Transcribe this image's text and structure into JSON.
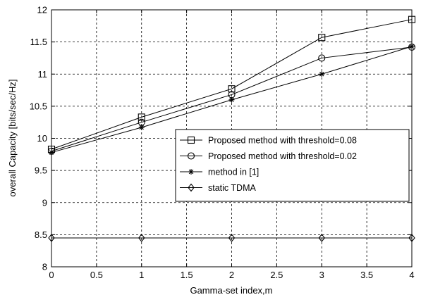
{
  "chart_data": {
    "type": "line",
    "xlabel": "Gamma-set index,m",
    "ylabel": "overall Capacity [bits/sec/Hz]",
    "x": [
      0,
      1,
      2,
      3,
      4
    ],
    "xlim": [
      0,
      4
    ],
    "ylim": [
      8,
      12
    ],
    "xticks": [
      "0",
      "0.5",
      "1",
      "1.5",
      "2",
      "2.5",
      "3",
      "3.5",
      "4"
    ],
    "xtick_values": [
      0,
      0.5,
      1,
      1.5,
      2,
      2.5,
      3,
      3.5,
      4
    ],
    "yticks": [
      "8",
      "8.5",
      "9",
      "9.5",
      "10",
      "10.5",
      "11",
      "11.5",
      "12"
    ],
    "ytick_values": [
      8,
      8.5,
      9,
      9.5,
      10,
      10.5,
      11,
      11.5,
      12
    ],
    "grid": true,
    "legend_position": "center-right",
    "series": [
      {
        "name": "Proposed method with threshold=0.08",
        "marker": "square",
        "values": [
          9.83,
          10.33,
          10.77,
          11.57,
          11.85
        ]
      },
      {
        "name": "Proposed method with threshold=0.02",
        "marker": "circle",
        "values": [
          9.8,
          10.25,
          10.68,
          11.25,
          11.42
        ]
      },
      {
        "name": "method in [1]",
        "marker": "star",
        "values": [
          9.78,
          10.17,
          10.6,
          11.0,
          11.43
        ]
      },
      {
        "name": "static TDMA",
        "marker": "diamond",
        "values": [
          8.45,
          8.45,
          8.45,
          8.45,
          8.45
        ]
      }
    ]
  }
}
